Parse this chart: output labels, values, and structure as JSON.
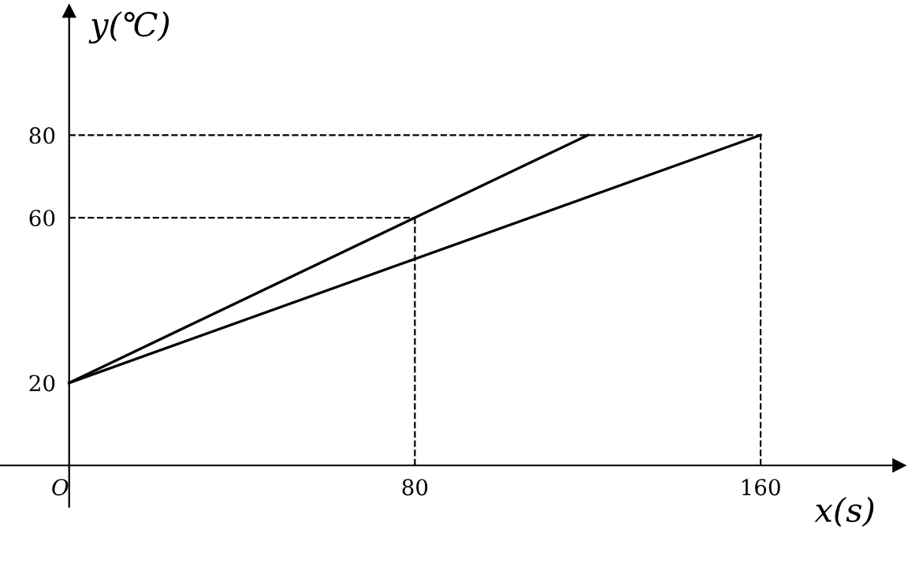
{
  "chart_data": {
    "type": "line",
    "xlabel": "x(s)",
    "ylabel": "y(℃)",
    "series": [
      {
        "color": "#000000",
        "x": [
          0,
          80,
          120
        ],
        "values": [
          20,
          60,
          80
        ]
      },
      {
        "color": "#000000",
        "x": [
          0,
          160
        ],
        "values": [
          20,
          80
        ]
      }
    ],
    "xlim": [
      -16,
      192
    ],
    "ylim": [
      -10,
      110
    ],
    "xticks": [
      {
        "value": 0,
        "label": "O"
      },
      80,
      160
    ],
    "yticks": [
      20,
      60,
      80
    ],
    "ref_lines": [
      {
        "axis": "y",
        "value": 80,
        "line_style": "dashed",
        "color": "#000000"
      },
      {
        "axis": "y",
        "value": 60,
        "line_style": "dashed",
        "color": "#000000"
      },
      {
        "axis": "x",
        "value": 80,
        "line_style": "dashed",
        "color": "#000000"
      },
      {
        "axis": "x",
        "value": 160,
        "line_style": "dashed",
        "color": "#000000"
      }
    ],
    "grid": false,
    "legend": false,
    "marker": "none",
    "line_style": "solid"
  }
}
